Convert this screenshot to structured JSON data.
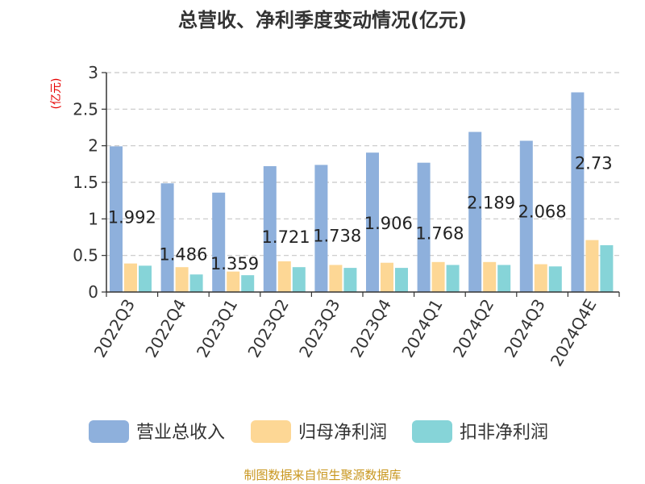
{
  "chart_data": {
    "type": "bar",
    "title": "总营收、净利季度变动情况(亿元)",
    "ylabel": "(亿元)",
    "categories": [
      "2022Q3",
      "2022Q4",
      "2023Q1",
      "2023Q2",
      "2023Q3",
      "2023Q4",
      "2024Q1",
      "2024Q2",
      "2024Q3",
      "2024Q4E"
    ],
    "ylim": [
      0,
      3
    ],
    "yticks": [
      "0",
      "0.5",
      "1",
      "1.5",
      "2",
      "2.5",
      "3"
    ],
    "grid": true,
    "legend_position": "bottom",
    "series": [
      {
        "name": "营业总收入",
        "color": "#8eb0dc",
        "values": [
          1.992,
          1.486,
          1.359,
          1.721,
          1.738,
          1.906,
          1.768,
          2.189,
          2.068,
          2.73
        ],
        "labels": [
          "1.992",
          "1.486",
          "1.359",
          "1.721",
          "1.738",
          "1.906",
          "1.768",
          "2.189",
          "2.068",
          "2.73"
        ]
      },
      {
        "name": "归母净利润",
        "color": "#fdd795",
        "values": [
          0.39,
          0.34,
          0.28,
          0.42,
          0.37,
          0.4,
          0.41,
          0.41,
          0.38,
          0.71
        ]
      },
      {
        "name": "扣非净利润",
        "color": "#86d4d8",
        "values": [
          0.36,
          0.24,
          0.23,
          0.34,
          0.33,
          0.33,
          0.37,
          0.37,
          0.35,
          0.64
        ]
      }
    ]
  },
  "source": "制图数据来自恒生聚源数据库"
}
